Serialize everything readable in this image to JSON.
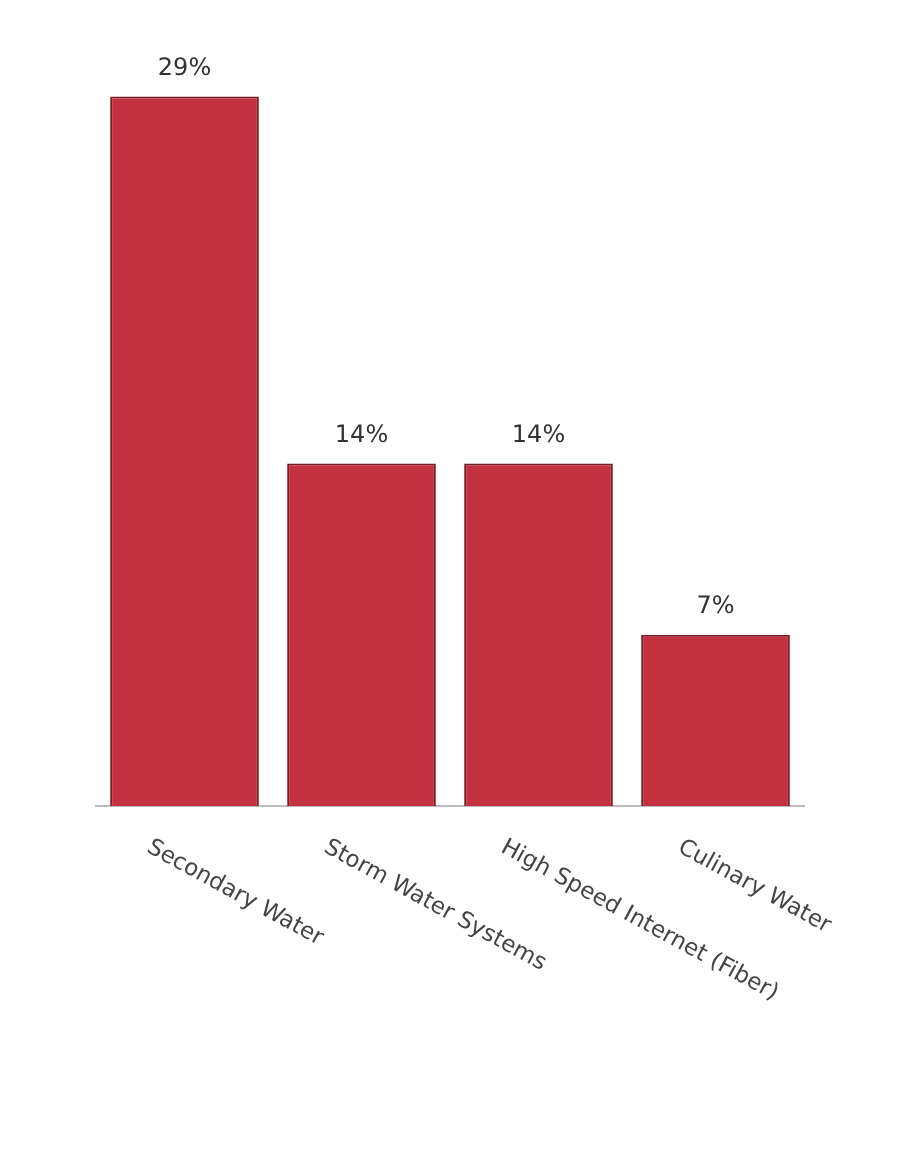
{
  "chart_data": {
    "type": "bar",
    "categories": [
      "Secondary Water",
      "Storm Water Systems",
      "High Speed Internet (Fiber)",
      "Culinary Water"
    ],
    "values": [
      29,
      14,
      14,
      7
    ],
    "color": "#c3303f",
    "value_labels": [
      "29%",
      "14%",
      "14%",
      "7%"
    ],
    "grid": false,
    "legend": false
  }
}
